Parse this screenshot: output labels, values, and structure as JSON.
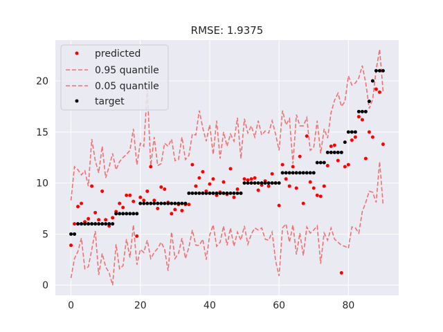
{
  "chart_data": {
    "type": "scatter",
    "title": "RMSE: 1.9375",
    "xlabel": "",
    "ylabel": "",
    "xlim": [
      -4.5,
      94.5
    ],
    "ylim": [
      -1.0,
      24.0
    ],
    "xticks": [
      0,
      20,
      40,
      60,
      80
    ],
    "yticks": [
      0,
      5,
      10,
      15,
      20
    ],
    "grid": true,
    "legend_position": "top-left",
    "legend": [
      "predicted",
      "0.95 quantile",
      "0.05 quantile",
      "target"
    ],
    "colors": {
      "predicted": "#ff0000",
      "upper": "#f07070",
      "lower": "#f07070",
      "target": "#000000",
      "plot_bg": "#eaeaf2"
    },
    "series": [
      {
        "name": "predicted",
        "kind": "points",
        "x": [
          0,
          1,
          2,
          3,
          4,
          5,
          6,
          7,
          8,
          9,
          10,
          11,
          12,
          13,
          14,
          15,
          16,
          17,
          18,
          19,
          20,
          21,
          22,
          23,
          24,
          25,
          26,
          27,
          28,
          29,
          30,
          31,
          32,
          33,
          34,
          35,
          36,
          37,
          38,
          39,
          40,
          41,
          42,
          43,
          44,
          45,
          46,
          47,
          48,
          49,
          50,
          51,
          52,
          53,
          54,
          55,
          56,
          57,
          58,
          59,
          60,
          61,
          62,
          63,
          64,
          65,
          66,
          67,
          68,
          69,
          70,
          71,
          72,
          73,
          74,
          75,
          76,
          77,
          78,
          79,
          80,
          81,
          82,
          83,
          84,
          85,
          86,
          87,
          88,
          89,
          90
        ],
        "y": [
          3.9,
          6.0,
          7.7,
          8.0,
          6.2,
          6.5,
          9.7,
          7.1,
          6.4,
          9.2,
          6.4,
          5.8,
          6.6,
          7.2,
          8.0,
          7.6,
          8.8,
          8.8,
          8.2,
          4.8,
          8.6,
          8.3,
          9.2,
          11.6,
          8.3,
          7.5,
          9.6,
          9.4,
          8.1,
          7.0,
          7.4,
          7.9,
          7.3,
          7.9,
          7.9,
          11.8,
          9.7,
          10.5,
          11.1,
          9.2,
          9.9,
          10.4,
          8.8,
          9.1,
          10.1,
          8.9,
          11.4,
          8.6,
          9.4,
          9.0,
          10.4,
          10.3,
          10.4,
          10.5,
          9.3,
          9.8,
          10.2,
          9.7,
          10.9,
          10.0,
          7.8,
          11.8,
          10.4,
          9.7,
          11.6,
          9.5,
          12.6,
          8.0,
          14.6,
          10.1,
          9.5,
          8.8,
          8.7,
          9.7,
          11.7,
          13.6,
          13.7,
          12.2,
          1.2,
          11.6,
          11.8,
          14.2,
          14.5,
          16.5,
          16.2,
          12.4,
          15.0,
          14.5,
          19.2,
          18.9,
          13.8
        ]
      },
      {
        "name": "0.95 quantile",
        "kind": "dashed-line",
        "x": [
          0,
          1,
          2,
          3,
          4,
          5,
          6,
          7,
          8,
          9,
          10,
          11,
          12,
          13,
          14,
          15,
          16,
          17,
          18,
          19,
          20,
          21,
          22,
          23,
          24,
          25,
          26,
          27,
          28,
          29,
          30,
          31,
          32,
          33,
          34,
          35,
          36,
          37,
          38,
          39,
          40,
          41,
          42,
          43,
          44,
          45,
          46,
          47,
          48,
          49,
          50,
          51,
          52,
          53,
          54,
          55,
          56,
          57,
          58,
          59,
          60,
          61,
          62,
          63,
          64,
          65,
          66,
          67,
          68,
          69,
          70,
          71,
          72,
          73,
          74,
          75,
          76,
          77,
          78,
          79,
          80,
          81,
          82,
          83,
          84,
          85,
          86,
          87,
          88,
          89,
          90
        ],
        "y": [
          8.3,
          11.6,
          11.3,
          10.8,
          11.2,
          9.7,
          14.3,
          12.2,
          11.0,
          13.6,
          10.5,
          11.6,
          12.9,
          11.3,
          12.1,
          12.5,
          12.8,
          13.2,
          15.3,
          11.8,
          13.9,
          13.6,
          19.2,
          11.7,
          14.5,
          11.7,
          11.9,
          13.9,
          13.6,
          14.3,
          12.2,
          12.3,
          14.5,
          12.3,
          12.7,
          14.8,
          14.7,
          17.1,
          15.4,
          14.1,
          15.7,
          12.8,
          16.1,
          12.4,
          15.0,
          13.6,
          14.8,
          14.1,
          16.4,
          12.4,
          16.3,
          14.9,
          15.6,
          14.5,
          16.1,
          14.7,
          15.1,
          14.9,
          16.1,
          14.8,
          13.2,
          17.1,
          15.7,
          16.3,
          11.9,
          16.7,
          15.6,
          15.6,
          16.4,
          13.2,
          13.5,
          16.1,
          12.9,
          15.3,
          14.4,
          16.9,
          18.1,
          18.8,
          17.5,
          18.0,
          20.5,
          19.6,
          19.8,
          20.3,
          21.5,
          19.8,
          17.3,
          18.2,
          21.1,
          23.1,
          19.0
        ]
      },
      {
        "name": "0.05 quantile",
        "kind": "dashed-line",
        "x": [
          0,
          1,
          2,
          3,
          4,
          5,
          6,
          7,
          8,
          9,
          10,
          11,
          12,
          13,
          14,
          15,
          16,
          17,
          18,
          19,
          20,
          21,
          22,
          23,
          24,
          25,
          26,
          27,
          28,
          29,
          30,
          31,
          32,
          33,
          34,
          35,
          36,
          37,
          38,
          39,
          40,
          41,
          42,
          43,
          44,
          45,
          46,
          47,
          48,
          49,
          50,
          51,
          52,
          53,
          54,
          55,
          56,
          57,
          58,
          59,
          60,
          61,
          62,
          63,
          64,
          65,
          66,
          67,
          68,
          69,
          70,
          71,
          72,
          73,
          74,
          75,
          76,
          77,
          78,
          79,
          80,
          81,
          82,
          83,
          84,
          85,
          86,
          87,
          88,
          89,
          90
        ],
        "y": [
          0.7,
          2.6,
          3.3,
          4.6,
          1.6,
          1.8,
          3.5,
          5.3,
          1.0,
          3.1,
          1.8,
          1.2,
          0.0,
          4.0,
          1.6,
          1.9,
          4.5,
          2.7,
          5.9,
          2.0,
          3.5,
          3.2,
          4.4,
          2.6,
          3.2,
          3.6,
          4.2,
          3.5,
          1.4,
          5.2,
          2.6,
          3.1,
          4.6,
          2.6,
          3.7,
          5.4,
          3.9,
          3.9,
          4.5,
          2.5,
          4.9,
          5.9,
          3.8,
          4.2,
          5.8,
          3.9,
          5.6,
          3.8,
          5.2,
          4.4,
          5.8,
          4.0,
          5.0,
          5.6,
          5.4,
          5.6,
          4.5,
          4.4,
          5.2,
          2.4,
          0.9,
          5.6,
          6.0,
          4.2,
          5.9,
          3.0,
          5.1,
          2.9,
          5.7,
          5.1,
          5.4,
          5.8,
          2.1,
          5.1,
          4.4,
          5.6,
          4.5,
          4.2,
          3.9,
          3.8,
          3.6,
          5.7,
          5.6,
          5.1,
          7.2,
          8.1,
          9.2,
          9.1,
          8.1,
          12.1,
          7.9
        ]
      },
      {
        "name": "target",
        "kind": "points",
        "x": [
          0,
          1,
          2,
          3,
          4,
          5,
          6,
          7,
          8,
          9,
          10,
          11,
          12,
          13,
          14,
          15,
          16,
          17,
          18,
          19,
          20,
          21,
          22,
          23,
          24,
          25,
          26,
          27,
          28,
          29,
          30,
          31,
          32,
          33,
          34,
          35,
          36,
          37,
          38,
          39,
          40,
          41,
          42,
          43,
          44,
          45,
          46,
          47,
          48,
          49,
          50,
          51,
          52,
          53,
          54,
          55,
          56,
          57,
          58,
          59,
          60,
          61,
          62,
          63,
          64,
          65,
          66,
          67,
          68,
          69,
          70,
          71,
          72,
          73,
          74,
          75,
          76,
          77,
          78,
          79,
          80,
          81,
          82,
          83,
          84,
          85,
          86,
          87,
          88,
          89,
          90
        ],
        "y": [
          5,
          5,
          6,
          6,
          6,
          6,
          6,
          6,
          6,
          6,
          6,
          6,
          6,
          7,
          7,
          7,
          7,
          7,
          7,
          7,
          8,
          8,
          8,
          8,
          8,
          8,
          8,
          8,
          8,
          8,
          8,
          8,
          8,
          8,
          9,
          9,
          9,
          9,
          9,
          9,
          9,
          9,
          9,
          9,
          9,
          9,
          9,
          9,
          9,
          9,
          10,
          10,
          10,
          10,
          10,
          10,
          10,
          10,
          10,
          10,
          10,
          11,
          11,
          11,
          11,
          11,
          11,
          11,
          11,
          11,
          11,
          12,
          12,
          12,
          13,
          13,
          13,
          13,
          13,
          14,
          15,
          15,
          15,
          17,
          17,
          17,
          18,
          20,
          21,
          21,
          21
        ]
      }
    ]
  }
}
